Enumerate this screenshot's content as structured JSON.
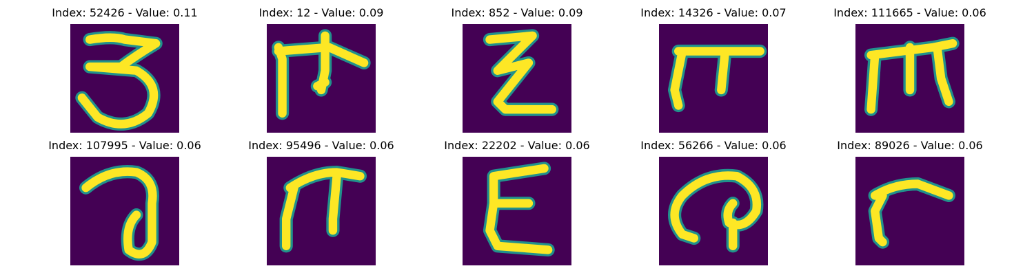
{
  "figure": {
    "panels": [
      {
        "index": "52426",
        "value": "0.11",
        "title": "Index: 52426 - Value: 0.11",
        "glyph": "three-like-character"
      },
      {
        "index": "12",
        "value": "0.09",
        "title": "Index: 12 - Value: 0.09",
        "glyph": "pi-like-character-with-cross"
      },
      {
        "index": "852",
        "value": "0.09",
        "title": "Index: 852 - Value: 0.09",
        "glyph": "z-like-character"
      },
      {
        "index": "14326",
        "value": "0.07",
        "title": "Index: 14326 - Value: 0.07",
        "glyph": "pi-like-character"
      },
      {
        "index": "111665",
        "value": "0.06",
        "title": "Index: 111665 - Value: 0.06",
        "glyph": "m-like-character"
      },
      {
        "index": "107995",
        "value": "0.06",
        "title": "Index: 107995 - Value: 0.06",
        "glyph": "loop-character"
      },
      {
        "index": "95496",
        "value": "0.06",
        "title": "Index: 95496 - Value: 0.06",
        "glyph": "pi-like-character"
      },
      {
        "index": "22202",
        "value": "0.06",
        "title": "Index: 22202 - Value: 0.06",
        "glyph": "epsilon-like-character"
      },
      {
        "index": "56266",
        "value": "0.06",
        "title": "Index: 56266 - Value: 0.06",
        "glyph": "curl-character"
      },
      {
        "index": "89026",
        "value": "0.06",
        "title": "Index: 89026 - Value: 0.06",
        "glyph": "r-like-character"
      }
    ],
    "colors": {
      "background": "#ffffff",
      "image_background": "#440154",
      "stroke_edge": "#21918c",
      "stroke_core": "#fde725",
      "title_text": "#000000"
    }
  }
}
